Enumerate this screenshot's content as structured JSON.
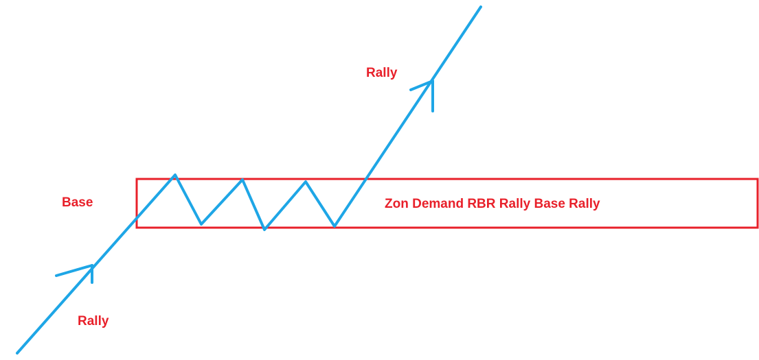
{
  "labels": [
    "Rally",
    "Base",
    "Zon Demand RBR Rally Base Rally",
    "Rally"
  ]
}
